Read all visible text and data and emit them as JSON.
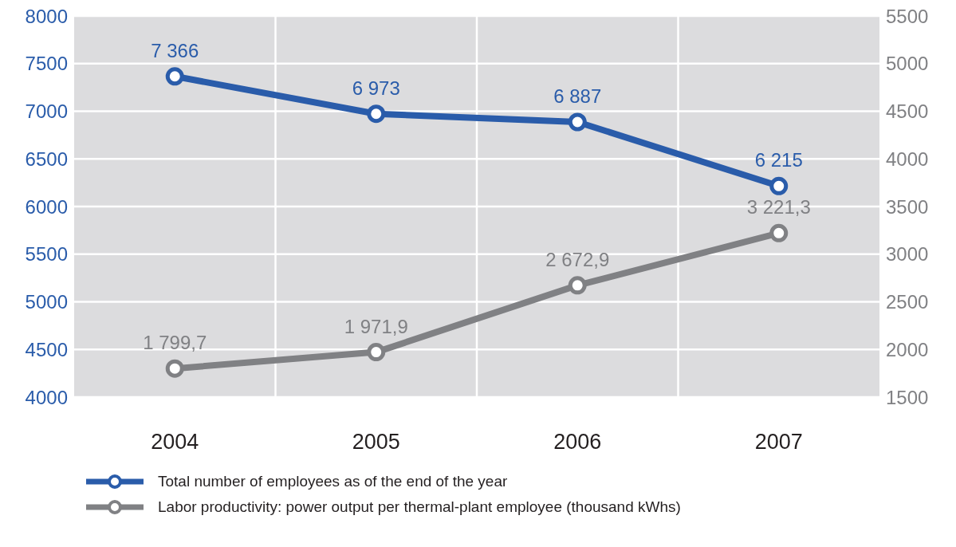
{
  "chart_data": {
    "type": "line",
    "categories": [
      "2004",
      "2005",
      "2006",
      "2007"
    ],
    "series": [
      {
        "name": "Total number of employees as of the end of the year",
        "color": "#2a5caa",
        "values": [
          7366,
          6973,
          6887,
          6215
        ],
        "value_labels": [
          "7 366",
          "6 973",
          "6 887",
          "6 215"
        ]
      },
      {
        "name": "Labor productivity: power output per thermal-plant employee (thousand kWhs)",
        "color": "#808184",
        "axis": "y2",
        "values": [
          1799.7,
          1971.9,
          2672.9,
          3221.3
        ],
        "value_labels": [
          "1 799,7",
          "1 971,9",
          "2 672,9",
          "3 221,3"
        ]
      }
    ],
    "ylim": [
      4000,
      8000
    ],
    "yticks": [
      4000,
      4500,
      5000,
      5500,
      6000,
      6500,
      7000,
      7500,
      8000
    ],
    "y2lim": [
      1500,
      5500
    ],
    "y2ticks": [
      1500,
      2000,
      2500,
      3000,
      3500,
      4000,
      4500,
      5000,
      5500
    ],
    "grid": true,
    "legend": "bottom",
    "marker": "circle",
    "line_style": "solid"
  }
}
